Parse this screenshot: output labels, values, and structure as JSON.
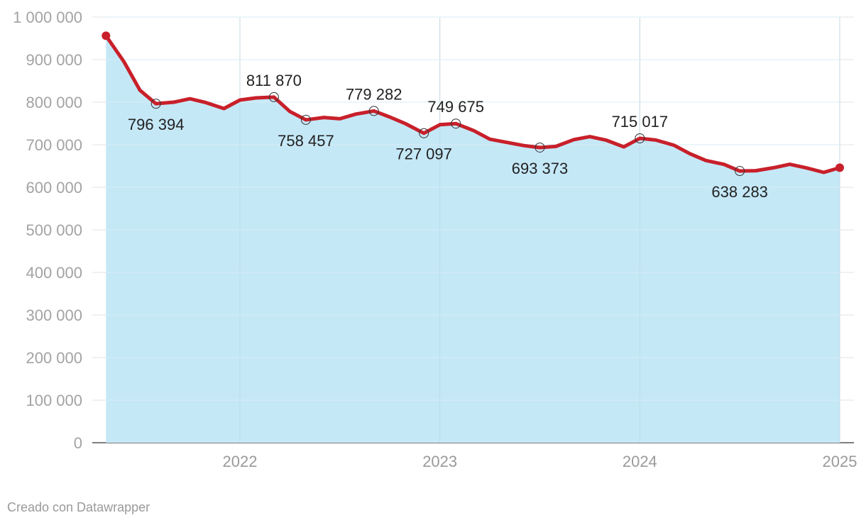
{
  "chart_data": {
    "type": "area",
    "title": "",
    "xlabel": "",
    "ylabel": "",
    "ylim": [
      0,
      1000000
    ],
    "xlim": [
      2021.33,
      2025.0
    ],
    "grid": true,
    "y_ticks": [
      0,
      100000,
      200000,
      300000,
      400000,
      500000,
      600000,
      700000,
      800000,
      900000,
      1000000
    ],
    "y_tick_labels": [
      "0",
      "100 000",
      "200 000",
      "300 000",
      "400 000",
      "500 000",
      "600 000",
      "700 000",
      "800 000",
      "900 000",
      "1 000 000"
    ],
    "x_ticks": [
      2022,
      2023,
      2024,
      2025
    ],
    "x_tick_labels": [
      "2022",
      "2023",
      "2024",
      "2025"
    ],
    "series": [
      {
        "color": "#c8202a",
        "fill": "#c5e8f7",
        "x": [
          2021.33,
          2021.42,
          2021.5,
          2021.58,
          2021.67,
          2021.75,
          2021.83,
          2021.92,
          2022.0,
          2022.08,
          2022.17,
          2022.25,
          2022.33,
          2022.42,
          2022.5,
          2022.58,
          2022.67,
          2022.75,
          2022.83,
          2022.92,
          2023.0,
          2023.08,
          2023.17,
          2023.25,
          2023.33,
          2023.42,
          2023.5,
          2023.58,
          2023.67,
          2023.75,
          2023.83,
          2023.92,
          2024.0,
          2024.08,
          2024.17,
          2024.25,
          2024.33,
          2024.42,
          2024.5,
          2024.58,
          2024.67,
          2024.75,
          2024.83,
          2024.92,
          2025.0
        ],
        "values": [
          956000,
          895000,
          828000,
          796394,
          800000,
          808000,
          799000,
          785000,
          805000,
          810000,
          811870,
          778000,
          758457,
          764000,
          761000,
          772000,
          779282,
          765000,
          749000,
          727097,
          747000,
          749675,
          733000,
          713000,
          706000,
          698000,
          693373,
          696000,
          712000,
          719000,
          711000,
          695000,
          715017,
          711000,
          699000,
          679000,
          663000,
          654000,
          638283,
          639000,
          646000,
          654000,
          646000,
          635000,
          646000
        ]
      }
    ],
    "annotations": [
      {
        "x": 2021.58,
        "value": 796394,
        "label": "796 394",
        "position": "below"
      },
      {
        "x": 2022.17,
        "value": 811870,
        "label": "811 870",
        "position": "above"
      },
      {
        "x": 2022.33,
        "value": 758457,
        "label": "758 457",
        "position": "below"
      },
      {
        "x": 2022.67,
        "value": 779282,
        "label": "779 282",
        "position": "above"
      },
      {
        "x": 2022.92,
        "value": 727097,
        "label": "727 097",
        "position": "below"
      },
      {
        "x": 2023.08,
        "value": 749675,
        "label": "749 675",
        "position": "above"
      },
      {
        "x": 2023.5,
        "value": 693373,
        "label": "693 373",
        "position": "below"
      },
      {
        "x": 2024.0,
        "value": 715017,
        "label": "715 017",
        "position": "above"
      },
      {
        "x": 2024.5,
        "value": 638283,
        "label": "638 283",
        "position": "below"
      }
    ]
  },
  "credit": "Creado con Datawrapper"
}
